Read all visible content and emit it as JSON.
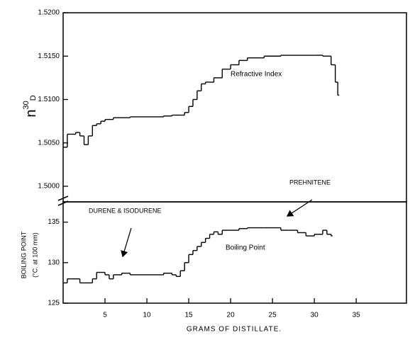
{
  "chart_data": [
    {
      "type": "line",
      "y_label": "n",
      "y_label_sup": "30",
      "y_label_sub": "D",
      "annotations": [
        "Refractive Index"
      ],
      "x": [
        0,
        0.5,
        1,
        1.5,
        2,
        2.5,
        3,
        3.5,
        4,
        4.5,
        5,
        6,
        8,
        10,
        12,
        13,
        14,
        14.5,
        15,
        15.5,
        16,
        16.5,
        17,
        18,
        19,
        20,
        21,
        22,
        24,
        26,
        28,
        30,
        31,
        32,
        32.5,
        32.8
      ],
      "values": [
        1.5045,
        1.506,
        1.506,
        1.5062,
        1.5058,
        1.5048,
        1.5058,
        1.507,
        1.5072,
        1.5075,
        1.5077,
        1.5079,
        1.508,
        1.508,
        1.5081,
        1.5082,
        1.5082,
        1.5085,
        1.5092,
        1.51,
        1.511,
        1.5118,
        1.512,
        1.5125,
        1.5135,
        1.514,
        1.5145,
        1.5148,
        1.515,
        1.5151,
        1.5151,
        1.5151,
        1.515,
        1.514,
        1.512,
        1.5105
      ],
      "color": "#000000",
      "xlim": [
        0,
        41
      ],
      "ylim": [
        1.4982,
        1.52
      ],
      "yticks": [
        {
          "value": 1.5,
          "label": "1.5000"
        },
        {
          "value": 1.505,
          "label": "1.5050"
        },
        {
          "value": 1.51,
          "label": "1.5100"
        },
        {
          "value": 1.515,
          "label": "1.5150"
        },
        {
          "value": 1.52,
          "label": "1.5200"
        }
      ]
    },
    {
      "type": "line",
      "y_label": "BOILING POINT",
      "y_label_2": "(°C. at 100 mm)",
      "x_label": "GRAMS OF DISTILLATE.",
      "annotations": [
        "Boiling Point",
        "DURENE & ISODURENE",
        "PREHNITENE"
      ],
      "x": [
        0,
        0.5,
        1,
        2,
        2.5,
        3.5,
        4,
        5,
        5.5,
        6,
        7,
        8,
        10,
        12,
        13,
        13.5,
        14,
        14.5,
        15,
        15.5,
        16,
        16.5,
        17,
        17.5,
        18,
        18.5,
        19,
        20,
        21,
        22,
        24,
        26,
        27,
        28,
        29,
        30,
        31,
        31.5,
        32
      ],
      "values": [
        127.5,
        128,
        128,
        127.5,
        127.5,
        128,
        128.8,
        128.5,
        128,
        128.5,
        128.7,
        128.5,
        128.5,
        128.7,
        128.5,
        128.3,
        129,
        130,
        131,
        131.5,
        132,
        132.5,
        133,
        133.5,
        133.8,
        133.5,
        134,
        134,
        134.2,
        134.3,
        134.3,
        134,
        134,
        133.7,
        133.3,
        133.5,
        134,
        133.5,
        133.3
      ],
      "color": "#000000",
      "xlim": [
        0,
        41
      ],
      "ylim": [
        125,
        137.5
      ],
      "xticks": [
        5,
        10,
        15,
        20,
        25,
        30,
        35
      ],
      "yticks": [
        125,
        130,
        135
      ]
    }
  ]
}
